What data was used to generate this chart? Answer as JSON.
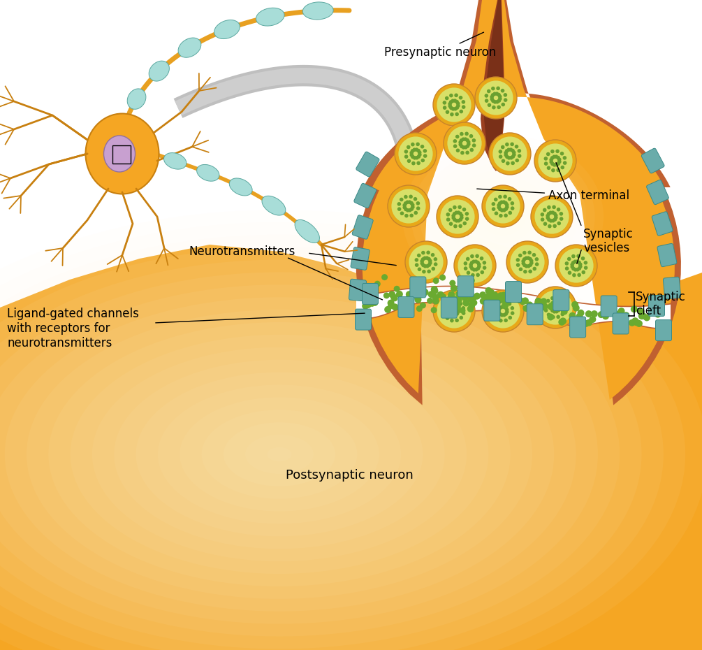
{
  "bg_color": "#ffffff",
  "golden": "#F5A623",
  "golden_dark": "#C8832A",
  "golden_light": "#FFD070",
  "golden_mid": "#F0B830",
  "myelin_fill": "#A8DDD8",
  "myelin_edge": "#5BA8A0",
  "node_gold": "#E8A020",
  "vesicle_outer": "#E8A818",
  "vesicle_inner": "#D8E068",
  "vesicle_dot": "#6AA030",
  "channel_fill": "#6AACAA",
  "channel_edge": "#3A8A88",
  "nt_dot": "#6AAA30",
  "nucleus_fill": "#C8A0D0",
  "nucleus_edge": "#9070A0",
  "dendrite": "#C88010",
  "cleft_white": "#ffffff",
  "post_membrane": "#C06030",
  "arrow_gray": "#B8B8B8",
  "arrow_gray_light": "#D0D0D0",
  "labels": {
    "presynaptic_neuron": "Presynaptic neuron",
    "axon_terminal": "Axon terminal",
    "synaptic_vesicles": "Synaptic\nvesicles",
    "synaptic_cleft": "Synaptic\ncleft",
    "neurotransmitters": "Neurotransmitters",
    "ligand_gated": "Ligand-gated channels\nwith receptors for\nneurotransmitters",
    "postsynaptic_neuron": "Postsynaptic neuron"
  },
  "fs": 11
}
